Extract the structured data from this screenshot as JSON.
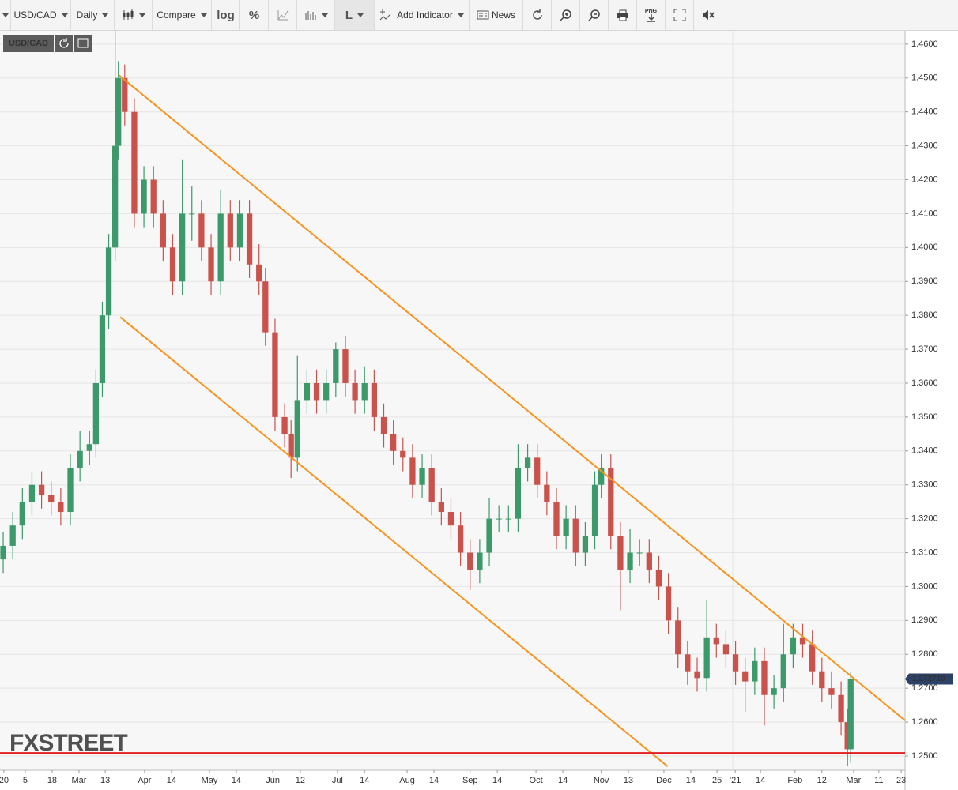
{
  "toolbar": {
    "symbol": "USD/CAD",
    "interval": "Daily",
    "compare": "Compare",
    "log": "log",
    "percent": "%",
    "line_tool": "L",
    "add_indicator": "Add Indicator",
    "news": "News",
    "png": "PNG"
  },
  "chart_data": {
    "type": "candlestick",
    "symbol": "USD/CAD",
    "watermark": "FXSTREET",
    "up_color": "#3c9a6a",
    "down_color": "#c9524c",
    "grid": true,
    "x": [
      0,
      3,
      6,
      9,
      12,
      15,
      18,
      21,
      24,
      27,
      29,
      31,
      33,
      35,
      36,
      38,
      41,
      44,
      47,
      50,
      53,
      56,
      59,
      62,
      65,
      68,
      71,
      74,
      77,
      80,
      82,
      85,
      88,
      90,
      92,
      95,
      98,
      101,
      104,
      107,
      110,
      113,
      116,
      119,
      122,
      125,
      128,
      131,
      134,
      137,
      140,
      143,
      146,
      149,
      152,
      155,
      158,
      161,
      164,
      167,
      170,
      173,
      176,
      179,
      182,
      185,
      187,
      190,
      193,
      196,
      199,
      202,
      205,
      208,
      211,
      214,
      217,
      220,
      223,
      226,
      229,
      232,
      235,
      238,
      241,
      244,
      247,
      250,
      253,
      256,
      259,
      262,
      264,
      265
    ],
    "open": [
      1.308,
      1.312,
      1.318,
      1.325,
      1.33,
      1.327,
      1.325,
      1.322,
      1.335,
      1.34,
      1.342,
      1.36,
      1.38,
      1.4,
      1.43,
      1.45,
      1.44,
      1.41,
      1.42,
      1.41,
      1.4,
      1.39,
      1.41,
      1.41,
      1.4,
      1.39,
      1.41,
      1.4,
      1.41,
      1.395,
      1.39,
      1.375,
      1.35,
      1.345,
      1.338,
      1.355,
      1.36,
      1.355,
      1.36,
      1.37,
      1.36,
      1.355,
      1.36,
      1.35,
      1.345,
      1.34,
      1.338,
      1.33,
      1.335,
      1.325,
      1.322,
      1.318,
      1.31,
      1.305,
      1.31,
      1.32,
      1.32,
      1.32,
      1.335,
      1.338,
      1.33,
      1.325,
      1.315,
      1.32,
      1.31,
      1.315,
      1.33,
      1.335,
      1.315,
      1.305,
      1.31,
      1.31,
      1.305,
      1.3,
      1.29,
      1.28,
      1.275,
      1.273,
      1.285,
      1.283,
      1.28,
      1.275,
      1.272,
      1.278,
      1.268,
      1.27,
      1.28,
      1.285,
      1.283,
      1.275,
      1.27,
      1.268,
      1.26,
      1.252
    ],
    "high": [
      1.316,
      1.322,
      1.329,
      1.334,
      1.334,
      1.331,
      1.329,
      1.339,
      1.346,
      1.346,
      1.364,
      1.384,
      1.404,
      1.467,
      1.455,
      1.454,
      1.444,
      1.424,
      1.424,
      1.414,
      1.404,
      1.426,
      1.418,
      1.414,
      1.404,
      1.417,
      1.414,
      1.414,
      1.414,
      1.401,
      1.394,
      1.379,
      1.354,
      1.349,
      1.368,
      1.364,
      1.364,
      1.364,
      1.372,
      1.374,
      1.364,
      1.365,
      1.364,
      1.354,
      1.349,
      1.344,
      1.342,
      1.339,
      1.339,
      1.329,
      1.326,
      1.322,
      1.314,
      1.314,
      1.326,
      1.324,
      1.324,
      1.342,
      1.342,
      1.342,
      1.334,
      1.329,
      1.324,
      1.324,
      1.319,
      1.334,
      1.339,
      1.339,
      1.319,
      1.317,
      1.314,
      1.314,
      1.309,
      1.304,
      1.294,
      1.284,
      1.279,
      1.296,
      1.289,
      1.287,
      1.284,
      1.279,
      1.282,
      1.282,
      1.274,
      1.289,
      1.289,
      1.289,
      1.287,
      1.279,
      1.275,
      1.272,
      1.264,
      1.275
    ],
    "low": [
      1.304,
      1.308,
      1.314,
      1.321,
      1.323,
      1.321,
      1.318,
      1.318,
      1.331,
      1.336,
      1.338,
      1.356,
      1.376,
      1.396,
      1.426,
      1.436,
      1.406,
      1.406,
      1.406,
      1.396,
      1.386,
      1.386,
      1.402,
      1.396,
      1.386,
      1.386,
      1.396,
      1.396,
      1.391,
      1.386,
      1.371,
      1.346,
      1.341,
      1.332,
      1.334,
      1.351,
      1.351,
      1.351,
      1.356,
      1.356,
      1.351,
      1.351,
      1.346,
      1.341,
      1.336,
      1.334,
      1.326,
      1.326,
      1.321,
      1.318,
      1.314,
      1.306,
      1.299,
      1.301,
      1.306,
      1.316,
      1.316,
      1.316,
      1.331,
      1.326,
      1.321,
      1.311,
      1.311,
      1.306,
      1.306,
      1.311,
      1.326,
      1.311,
      1.293,
      1.301,
      1.306,
      1.301,
      1.296,
      1.286,
      1.276,
      1.271,
      1.269,
      1.269,
      1.279,
      1.276,
      1.271,
      1.263,
      1.268,
      1.259,
      1.264,
      1.266,
      1.276,
      1.279,
      1.271,
      1.266,
      1.264,
      1.256,
      1.247,
      1.248
    ],
    "close": [
      1.312,
      1.318,
      1.325,
      1.33,
      1.327,
      1.325,
      1.322,
      1.335,
      1.34,
      1.342,
      1.36,
      1.38,
      1.4,
      1.43,
      1.45,
      1.44,
      1.41,
      1.42,
      1.41,
      1.4,
      1.39,
      1.41,
      1.41,
      1.4,
      1.39,
      1.41,
      1.4,
      1.41,
      1.395,
      1.39,
      1.375,
      1.35,
      1.345,
      1.338,
      1.355,
      1.36,
      1.355,
      1.36,
      1.37,
      1.36,
      1.355,
      1.36,
      1.35,
      1.345,
      1.34,
      1.338,
      1.33,
      1.335,
      1.325,
      1.322,
      1.318,
      1.31,
      1.305,
      1.31,
      1.32,
      1.32,
      1.32,
      1.335,
      1.338,
      1.33,
      1.325,
      1.315,
      1.32,
      1.31,
      1.315,
      1.33,
      1.335,
      1.315,
      1.305,
      1.31,
      1.31,
      1.305,
      1.3,
      1.29,
      1.28,
      1.275,
      1.273,
      1.285,
      1.283,
      1.28,
      1.275,
      1.272,
      1.278,
      1.268,
      1.27,
      1.28,
      1.285,
      1.283,
      1.275,
      1.27,
      1.268,
      1.26,
      1.252,
      1.2727
    ],
    "xlim": [
      -1,
      282
    ],
    "ylim": [
      1.2458,
      1.4637
    ],
    "xticks": [
      {
        "value": 0.2,
        "label": "20"
      },
      {
        "value": 6.9,
        "label": "5"
      },
      {
        "value": 15.3,
        "label": "18"
      },
      {
        "value": 23.7,
        "label": "Mar"
      },
      {
        "value": 31.9,
        "label": "13"
      },
      {
        "value": 44.2,
        "label": "Apr"
      },
      {
        "value": 52.6,
        "label": "14"
      },
      {
        "value": 64.5,
        "label": "May"
      },
      {
        "value": 72.9,
        "label": "14"
      },
      {
        "value": 84.3,
        "label": "Jun"
      },
      {
        "value": 92.9,
        "label": "12"
      },
      {
        "value": 104.5,
        "label": "Jul"
      },
      {
        "value": 113,
        "label": "14"
      },
      {
        "value": 126.3,
        "label": "Aug"
      },
      {
        "value": 134.7,
        "label": "14"
      },
      {
        "value": 146,
        "label": "Sep"
      },
      {
        "value": 154.5,
        "label": "14"
      },
      {
        "value": 166.6,
        "label": "Oct"
      },
      {
        "value": 175,
        "label": "14"
      },
      {
        "value": 187,
        "label": "Nov"
      },
      {
        "value": 195.5,
        "label": "13"
      },
      {
        "value": 206.6,
        "label": "Dec"
      },
      {
        "value": 215,
        "label": "14"
      },
      {
        "value": 223.2,
        "label": "25"
      },
      {
        "value": 228.9,
        "label": "'21"
      },
      {
        "value": 236.8,
        "label": "14"
      },
      {
        "value": 247.6,
        "label": "Feb"
      },
      {
        "value": 256,
        "label": "12"
      },
      {
        "value": 265.9,
        "label": "Mar"
      },
      {
        "value": 273.8,
        "label": "11"
      },
      {
        "value": 280.8,
        "label": "23"
      }
    ],
    "yticks": [
      {
        "value": 1.25,
        "label": "1.2500"
      },
      {
        "value": 1.26,
        "label": "1.2600"
      },
      {
        "value": 1.27,
        "label": "1.2700"
      },
      {
        "value": 1.28,
        "label": "1.2800"
      },
      {
        "value": 1.29,
        "label": "1.2900"
      },
      {
        "value": 1.3,
        "label": "1.3000"
      },
      {
        "value": 1.31,
        "label": "1.3100"
      },
      {
        "value": 1.32,
        "label": "1.3200"
      },
      {
        "value": 1.33,
        "label": "1.3300"
      },
      {
        "value": 1.34,
        "label": "1.3400"
      },
      {
        "value": 1.35,
        "label": "1.3500"
      },
      {
        "value": 1.36,
        "label": "1.3600"
      },
      {
        "value": 1.37,
        "label": "1.3700"
      },
      {
        "value": 1.38,
        "label": "1.3800"
      },
      {
        "value": 1.39,
        "label": "1.3900"
      },
      {
        "value": 1.4,
        "label": "1.4000"
      },
      {
        "value": 1.41,
        "label": "1.4100"
      },
      {
        "value": 1.42,
        "label": "1.4200"
      },
      {
        "value": 1.43,
        "label": "1.4300"
      },
      {
        "value": 1.44,
        "label": "1.4400"
      },
      {
        "value": 1.45,
        "label": "1.4500"
      },
      {
        "value": 1.46,
        "label": "1.4600"
      }
    ],
    "trend_lines": [
      {
        "color": "#f7931e",
        "x": [
          36.1,
          282
        ],
        "y": [
          1.4509,
          1.2605
        ]
      },
      {
        "color": "#f7931e",
        "x": [
          36.6,
          207.8
        ],
        "y": [
          1.3795,
          1.2469
        ]
      }
    ],
    "hlines": [
      {
        "color": "#e02020",
        "value": 1.2509
      }
    ],
    "last_price": {
      "value": 1.27271,
      "label": "1.272710",
      "color": "#2c4166"
    }
  }
}
